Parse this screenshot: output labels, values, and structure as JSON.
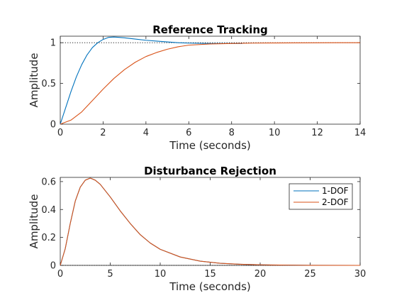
{
  "chart_data": [
    {
      "type": "line",
      "title": "Reference Tracking",
      "xlabel": "Time (seconds)",
      "ylabel": "Amplitude",
      "xlim": [
        0,
        14
      ],
      "ylim": [
        0,
        1.08
      ],
      "xticks": [
        0,
        2,
        4,
        6,
        8,
        10,
        12,
        14
      ],
      "yticks": [
        0,
        0.5,
        1
      ],
      "xtick_labels": [
        "0",
        "2",
        "4",
        "6",
        "8",
        "10",
        "12",
        "14"
      ],
      "ytick_labels": [
        "0",
        "0.5",
        "1"
      ],
      "reference_line": 1,
      "grid": false,
      "series": [
        {
          "color": "#0072BD",
          "x": [
            0,
            0.25,
            0.5,
            0.75,
            1.0,
            1.25,
            1.5,
            1.75,
            2.0,
            2.25,
            2.5,
            2.75,
            3.0,
            3.5,
            4.0,
            4.5,
            5.0,
            5.5,
            6.0,
            7.0,
            8.5
          ],
          "y": [
            0,
            0.2,
            0.4,
            0.58,
            0.73,
            0.85,
            0.94,
            1.0,
            1.04,
            1.065,
            1.07,
            1.065,
            1.06,
            1.045,
            1.03,
            1.02,
            1.01,
            1.0,
            0.995,
            0.99,
            0.99
          ]
        },
        {
          "color": "#D95319",
          "x": [
            0,
            0.5,
            1.0,
            1.5,
            2.0,
            2.5,
            3.0,
            3.5,
            4.0,
            4.5,
            5.0,
            5.5,
            6.0,
            7.0,
            8.0,
            9.0,
            10.0,
            11.0,
            12.0,
            13.0,
            14.0
          ],
          "y": [
            0,
            0.05,
            0.15,
            0.29,
            0.43,
            0.56,
            0.67,
            0.76,
            0.83,
            0.88,
            0.92,
            0.95,
            0.97,
            0.985,
            0.99,
            0.995,
            0.997,
            0.998,
            0.999,
            1.0,
            1.0
          ]
        }
      ]
    },
    {
      "type": "line",
      "title": "Disturbance Rejection",
      "xlabel": "Time (seconds)",
      "ylabel": "Amplitude",
      "xlim": [
        0,
        30
      ],
      "ylim": [
        0,
        0.63
      ],
      "xticks": [
        0,
        5,
        10,
        15,
        20,
        25,
        30
      ],
      "yticks": [
        0,
        0.2,
        0.4,
        0.6
      ],
      "xtick_labels": [
        "0",
        "5",
        "10",
        "15",
        "20",
        "25",
        "30"
      ],
      "ytick_labels": [
        "0",
        "0.2",
        "0.4",
        "0.6"
      ],
      "reference_line": 0,
      "grid": false,
      "legend": {
        "placement": "top-right",
        "entries": [
          "1-DOF",
          "2-DOF"
        ]
      },
      "series": [
        {
          "name": "1-DOF",
          "color": "#0072BD",
          "x": [
            0,
            0.5,
            1,
            1.5,
            2,
            2.5,
            3,
            3.5,
            4,
            5,
            6,
            7,
            8,
            9,
            10,
            12,
            14,
            16,
            18,
            20,
            22,
            25,
            30
          ],
          "y": [
            0,
            0.12,
            0.3,
            0.46,
            0.56,
            0.61,
            0.625,
            0.61,
            0.58,
            0.49,
            0.39,
            0.3,
            0.22,
            0.16,
            0.115,
            0.06,
            0.03,
            0.015,
            0.008,
            0.004,
            0.002,
            0.0005,
            0
          ]
        },
        {
          "name": "2-DOF",
          "color": "#D95319",
          "x": [
            0,
            0.5,
            1,
            1.5,
            2,
            2.5,
            3,
            3.5,
            4,
            5,
            6,
            7,
            8,
            9,
            10,
            12,
            14,
            16,
            18,
            20,
            22,
            25,
            30
          ],
          "y": [
            0,
            0.12,
            0.3,
            0.46,
            0.56,
            0.61,
            0.625,
            0.61,
            0.58,
            0.49,
            0.39,
            0.3,
            0.22,
            0.16,
            0.115,
            0.06,
            0.03,
            0.015,
            0.008,
            0.004,
            0.002,
            0.0005,
            0
          ]
        }
      ]
    }
  ]
}
